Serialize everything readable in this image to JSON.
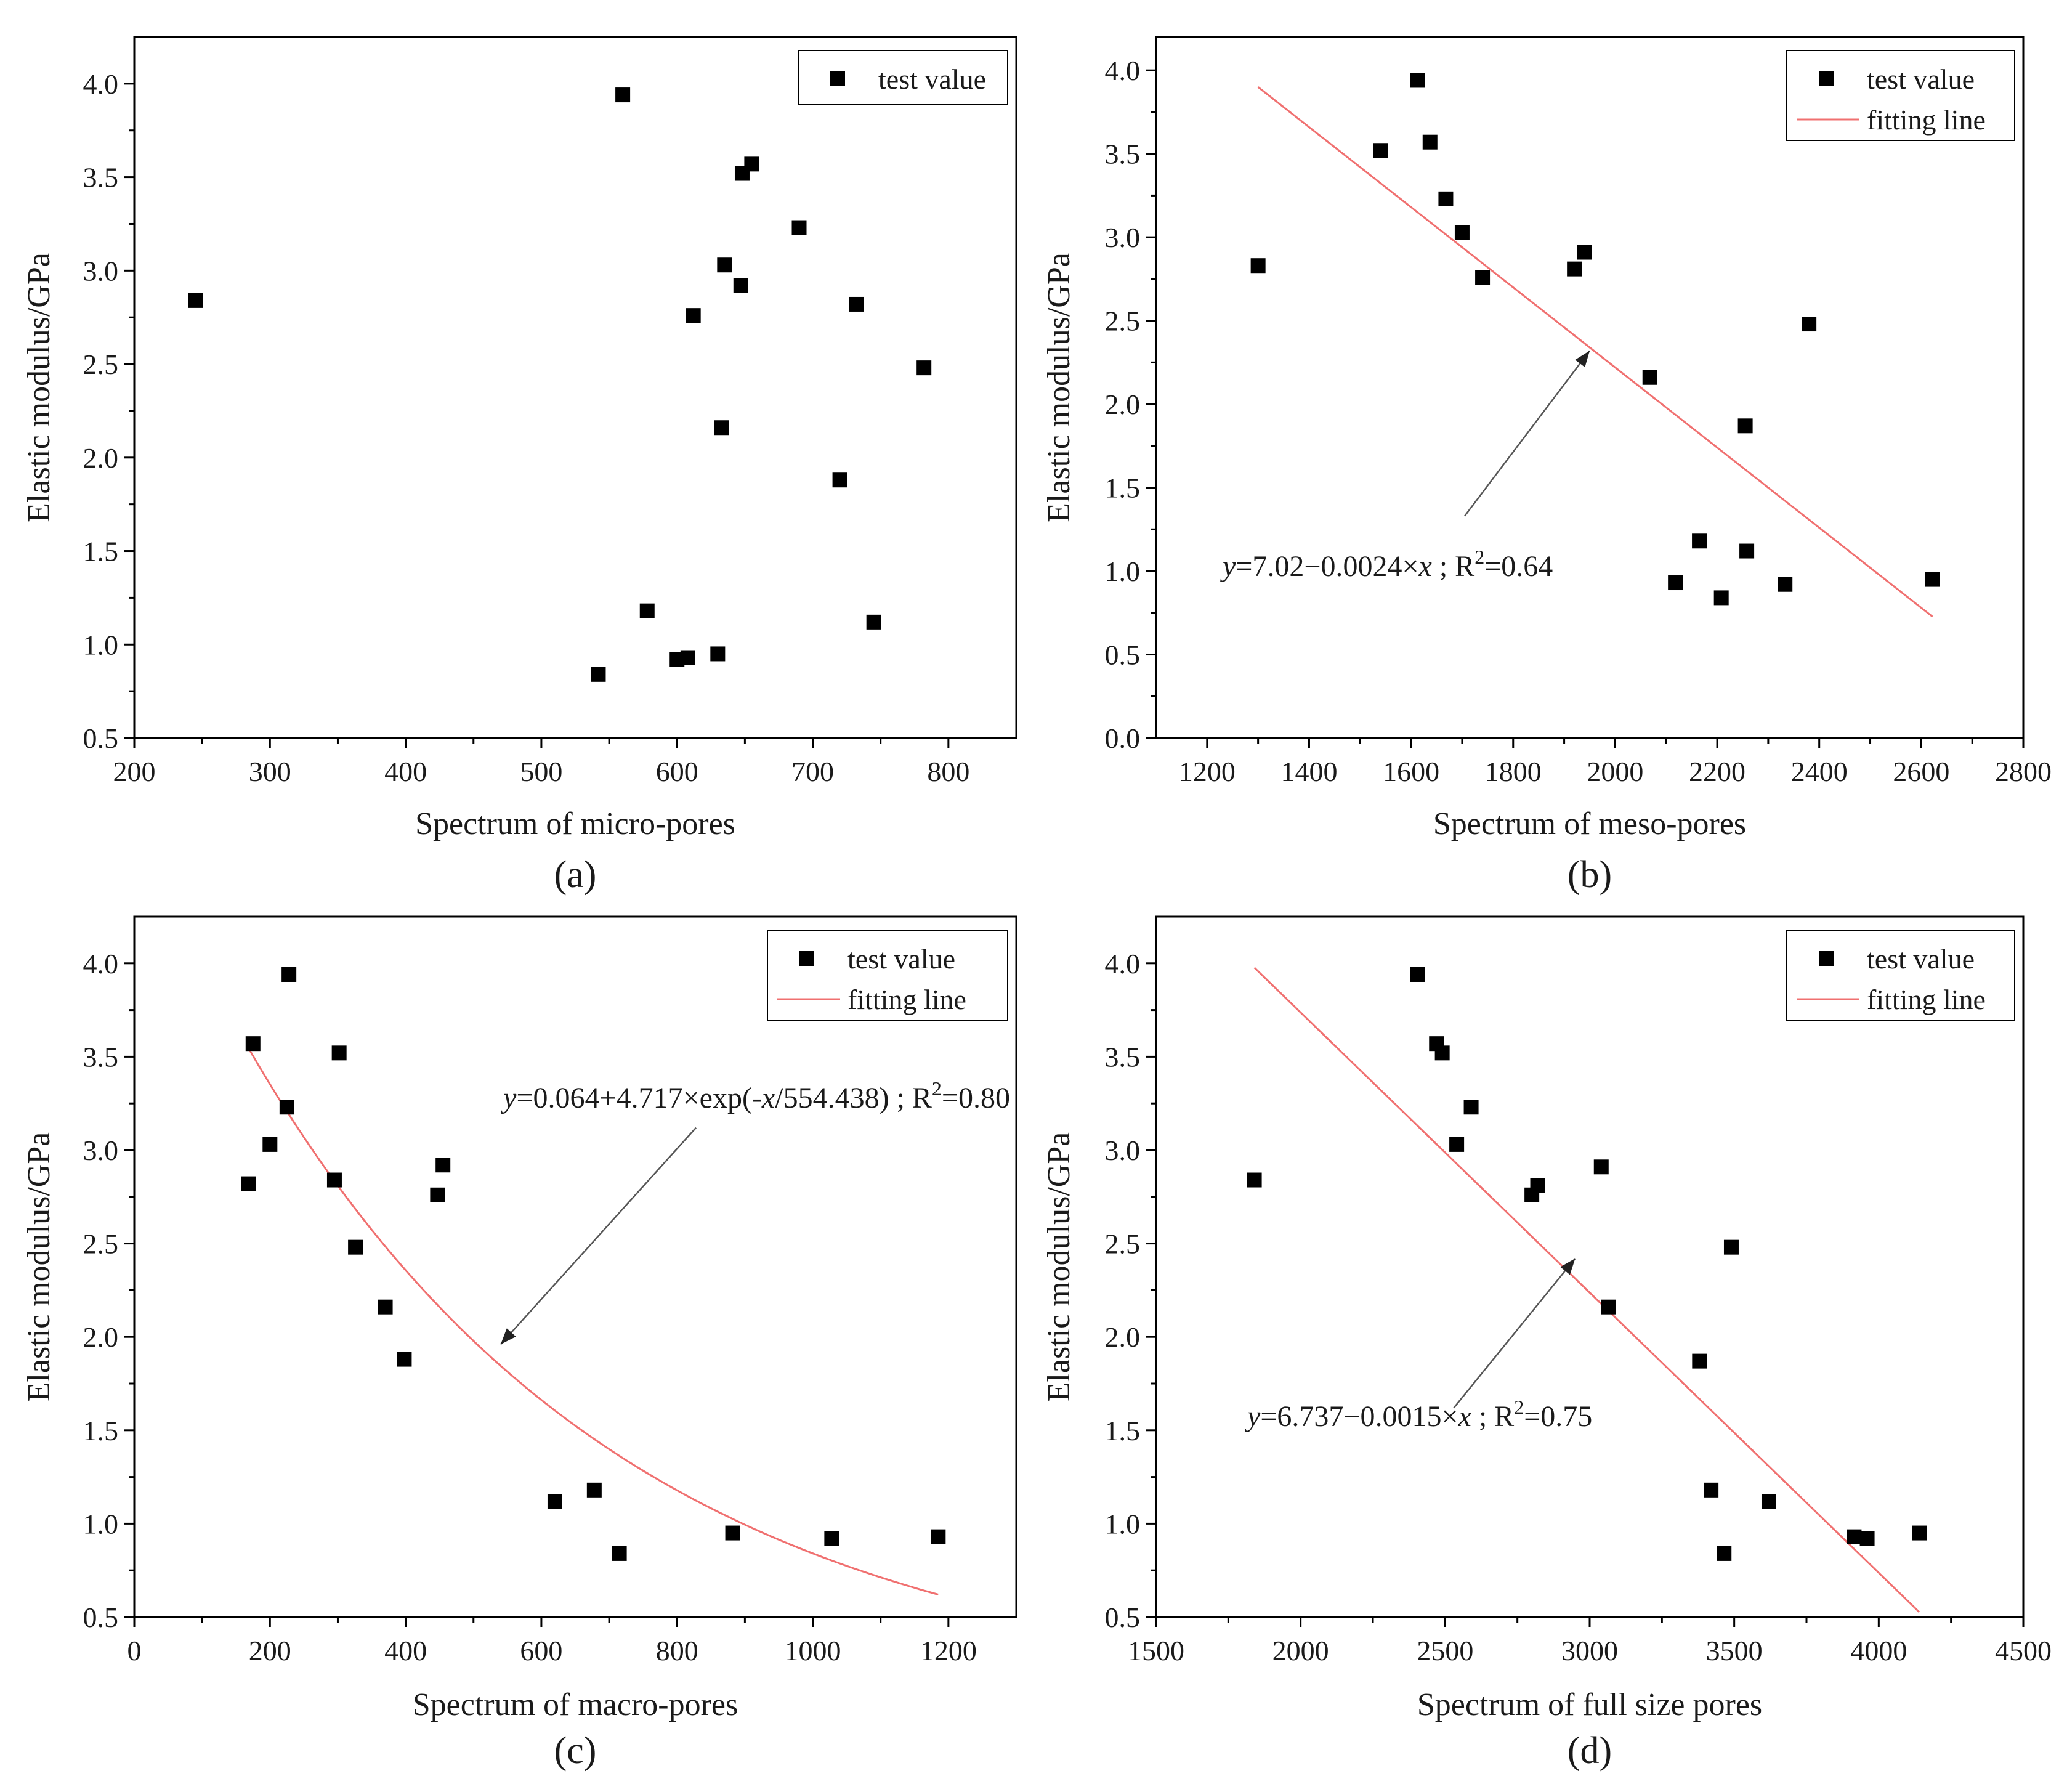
{
  "colors": {
    "marker": "#000000",
    "fit": "#f07070",
    "frame": "#000000",
    "arrow": "#555555"
  },
  "chart_data": [
    {
      "id": "a",
      "type": "scatter",
      "panel_label": "(a)",
      "xlabel": "Spectrum of micro-pores",
      "ylabel": "Elastic modulus/GPa",
      "xlim": [
        200,
        850
      ],
      "ylim": [
        0.5,
        4.25
      ],
      "xticks": [
        200,
        300,
        400,
        500,
        600,
        700,
        800
      ],
      "yticks": [
        0.5,
        1.0,
        1.5,
        2.0,
        2.5,
        3.0,
        3.5,
        4.0
      ],
      "xtick_labels": [
        "200",
        "300",
        "400",
        "500",
        "600",
        "700",
        "800"
      ],
      "ytick_labels": [
        "0.5",
        "1.0",
        "1.5",
        "2.0",
        "2.5",
        "3.0",
        "3.5",
        "4.0"
      ],
      "legend": {
        "position": "top-right",
        "entries": [
          {
            "label": "test value",
            "kind": "marker"
          }
        ]
      },
      "series": [
        {
          "name": "test value",
          "points": [
            [
              245,
              2.84
            ],
            [
              560,
              3.94
            ],
            [
              648,
              3.52
            ],
            [
              655,
              3.57
            ],
            [
              690,
              3.23
            ],
            [
              635,
              3.03
            ],
            [
              647,
              2.92
            ],
            [
              612,
              2.76
            ],
            [
              732,
              2.82
            ],
            [
              782,
              2.48
            ],
            [
              633,
              2.16
            ],
            [
              720,
              1.88
            ],
            [
              578,
              1.18
            ],
            [
              745,
              1.12
            ],
            [
              542,
              0.84
            ],
            [
              600,
              0.92
            ],
            [
              608,
              0.93
            ],
            [
              630,
              0.95
            ]
          ]
        }
      ]
    },
    {
      "id": "b",
      "type": "scatter",
      "panel_label": "(b)",
      "xlabel": "Spectrum of meso-pores",
      "ylabel": "Elastic modulus/GPa",
      "xlim": [
        1100,
        2800
      ],
      "ylim": [
        0.0,
        4.2
      ],
      "xticks": [
        1200,
        1400,
        1600,
        1800,
        2000,
        2200,
        2400,
        2600,
        2800
      ],
      "yticks": [
        0.0,
        0.5,
        1.0,
        1.5,
        2.0,
        2.5,
        3.0,
        3.5,
        4.0
      ],
      "xtick_labels": [
        "1200",
        "1400",
        "1600",
        "1800",
        "2000",
        "2200",
        "2400",
        "2600",
        "2800"
      ],
      "ytick_labels": [
        "0.0",
        "0.5",
        "1.0",
        "1.5",
        "2.0",
        "2.5",
        "3.0",
        "3.5",
        "4.0"
      ],
      "legend": {
        "position": "top-right",
        "entries": [
          {
            "label": "test value",
            "kind": "marker"
          },
          {
            "label": "fitting line",
            "kind": "line"
          }
        ]
      },
      "series": [
        {
          "name": "test value",
          "points": [
            [
              1300,
              2.83
            ],
            [
              1540,
              3.52
            ],
            [
              1612,
              3.94
            ],
            [
              1637,
              3.57
            ],
            [
              1668,
              3.23
            ],
            [
              1700,
              3.03
            ],
            [
              1740,
              2.76
            ],
            [
              1920,
              2.81
            ],
            [
              1940,
              2.91
            ],
            [
              2068,
              2.16
            ],
            [
              2118,
              0.93
            ],
            [
              2165,
              1.18
            ],
            [
              2208,
              0.84
            ],
            [
              2255,
              1.87
            ],
            [
              2258,
              1.12
            ],
            [
              2333,
              0.92
            ],
            [
              2380,
              2.48
            ],
            [
              2622,
              0.95
            ]
          ]
        }
      ],
      "fit": {
        "name": "fitting line",
        "model": "linear",
        "intercept": 7.02,
        "slope": -0.0024,
        "x_range": [
          1300,
          2622
        ]
      },
      "annotation": {
        "y_var": "y",
        "eq_mid": "=7.02−0.0024×",
        "x_var": "x",
        "r2_pre": " ; R",
        "r2_sup": "2",
        "r2_post": "=0.64",
        "arrow_tip": [
          1950,
          2.32
        ],
        "arrow_tail": [
          1705,
          1.33
        ]
      }
    },
    {
      "id": "c",
      "type": "scatter",
      "panel_label": "(c)",
      "xlabel": "Spectrum of macro-pores",
      "ylabel": "Elastic modulus/GPa",
      "xlim": [
        0,
        1300
      ],
      "ylim": [
        0.5,
        4.25
      ],
      "xticks": [
        0,
        200,
        400,
        600,
        800,
        1000,
        1200
      ],
      "yticks": [
        0.5,
        1.0,
        1.5,
        2.0,
        2.5,
        3.0,
        3.5,
        4.0
      ],
      "xtick_labels": [
        "0",
        "200",
        "400",
        "600",
        "800",
        "1000",
        "1200"
      ],
      "ytick_labels": [
        "0.5",
        "1.0",
        "1.5",
        "2.0",
        "2.5",
        "3.0",
        "3.5",
        "4.0"
      ],
      "legend": {
        "position": "top-right",
        "entries": [
          {
            "label": "test value",
            "kind": "marker"
          },
          {
            "label": "fitting line",
            "kind": "line"
          }
        ]
      },
      "series": [
        {
          "name": "test value",
          "points": [
            [
              168,
              2.82
            ],
            [
              175,
              3.57
            ],
            [
              200,
              3.03
            ],
            [
              225,
              3.23
            ],
            [
              228,
              3.94
            ],
            [
              295,
              2.84
            ],
            [
              302,
              3.52
            ],
            [
              326,
              2.48
            ],
            [
              370,
              2.16
            ],
            [
              398,
              1.88
            ],
            [
              447,
              2.76
            ],
            [
              455,
              2.92
            ],
            [
              620,
              1.12
            ],
            [
              678,
              1.18
            ],
            [
              715,
              0.84
            ],
            [
              882,
              0.95
            ],
            [
              1028,
              0.92
            ],
            [
              1185,
              0.93
            ]
          ]
        }
      ],
      "fit": {
        "name": "fitting line",
        "model": "exponential",
        "y0": 0.064,
        "A": 4.717,
        "t": 554.438,
        "x_range": [
          170,
          1185
        ]
      },
      "annotation": {
        "y_var": "y",
        "eq_mid": "=0.064+4.717×exp(-",
        "x_var": "x",
        "eq_end": "/554.438)",
        "r2_pre": " ; R",
        "r2_sup": "2",
        "r2_post": "=0.80",
        "arrow_tip": [
          540,
          1.96
        ],
        "arrow_tail": [
          828,
          3.12
        ]
      }
    },
    {
      "id": "d",
      "type": "scatter",
      "panel_label": "(d)",
      "xlabel": "Spectrum of  full size pores",
      "ylabel": "Elastic modulus/GPa",
      "xlim": [
        1500,
        4500
      ],
      "ylim": [
        0.5,
        4.25
      ],
      "xticks": [
        1500,
        2000,
        2500,
        3000,
        3500,
        4000,
        4500
      ],
      "yticks": [
        0.5,
        1.0,
        1.5,
        2.0,
        2.5,
        3.0,
        3.5,
        4.0
      ],
      "xtick_labels": [
        "1500",
        "2000",
        "2500",
        "3000",
        "3500",
        "4000",
        "4500"
      ],
      "ytick_labels": [
        "0.5",
        "1.0",
        "1.5",
        "2.0",
        "2.5",
        "3.0",
        "3.5",
        "4.0"
      ],
      "legend": {
        "position": "top-right",
        "entries": [
          {
            "label": "test value",
            "kind": "marker"
          },
          {
            "label": "fitting line",
            "kind": "line"
          }
        ]
      },
      "series": [
        {
          "name": "test value",
          "points": [
            [
              1840,
              2.84
            ],
            [
              2405,
              3.94
            ],
            [
              2470,
              3.57
            ],
            [
              2490,
              3.52
            ],
            [
              2540,
              3.03
            ],
            [
              2590,
              3.23
            ],
            [
              2800,
              2.76
            ],
            [
              2820,
              2.81
            ],
            [
              3040,
              2.91
            ],
            [
              3065,
              2.16
            ],
            [
              3380,
              1.87
            ],
            [
              3420,
              1.18
            ],
            [
              3465,
              0.84
            ],
            [
              3490,
              2.48
            ],
            [
              3620,
              1.12
            ],
            [
              3915,
              0.93
            ],
            [
              3960,
              0.92
            ],
            [
              4140,
              0.95
            ]
          ]
        }
      ],
      "fit": {
        "name": "fitting line",
        "model": "linear",
        "intercept": 6.737,
        "slope": -0.0015,
        "x_range": [
          1840,
          4140
        ]
      },
      "annotation": {
        "y_var": "y",
        "eq_mid": "=6.737−0.0015×",
        "x_var": "x",
        "r2_pre": " ; R",
        "r2_sup": "2",
        "r2_post": "=0.75",
        "arrow_tip": [
          2950,
          2.42
        ],
        "arrow_tail": [
          2530,
          1.62
        ]
      }
    }
  ]
}
